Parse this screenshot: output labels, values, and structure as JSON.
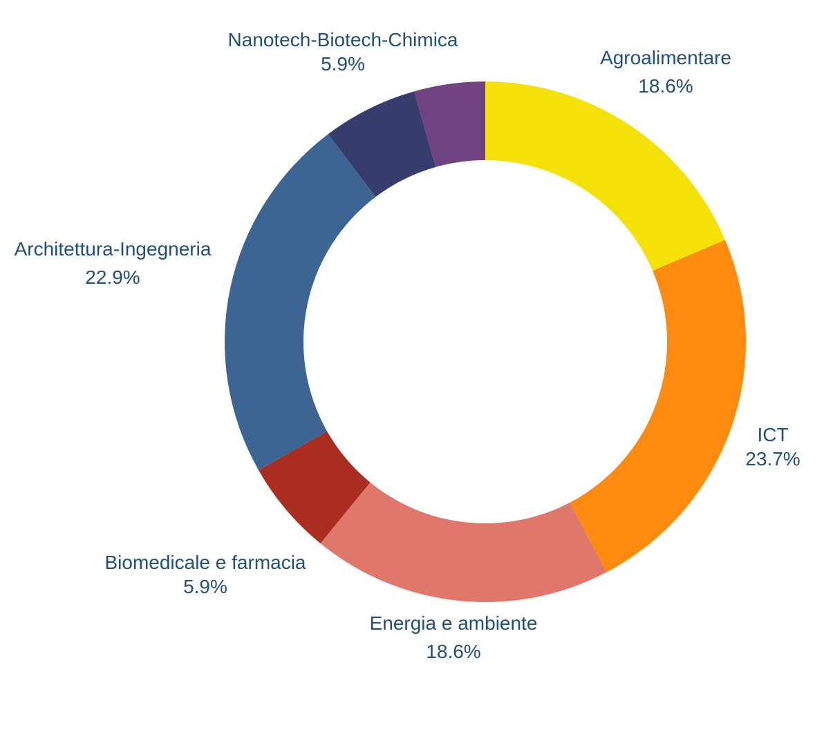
{
  "chart_data": {
    "type": "pie",
    "hole": true,
    "start_angle_deg": 0,
    "direction": "clockwise",
    "slices": [
      {
        "label": "Agroalimentare",
        "value": 18.6,
        "pct_text": "18.6%",
        "color": "#f5e10a"
      },
      {
        "label": "ICT",
        "value": 23.7,
        "pct_text": "23.7%",
        "color": "#ff8a10"
      },
      {
        "label": "Energia e ambiente",
        "value": 18.6,
        "pct_text": "18.6%",
        "color": "#e0776b"
      },
      {
        "label": "Biomedicale e farmacia",
        "value": 5.9,
        "pct_text": "5.9%",
        "color": "#a92e20"
      },
      {
        "label": "Architettura-Ingegneria",
        "value": 22.9,
        "pct_text": "22.9%",
        "color": "#3c6594"
      },
      {
        "label": "",
        "value": 5.9,
        "pct_text": "",
        "color": "#363c6c"
      },
      {
        "label": "Nanotech-Biotech-Chimica",
        "value": 4.4,
        "pct_text": "5.9%",
        "color": "#6e4380"
      }
    ]
  }
}
